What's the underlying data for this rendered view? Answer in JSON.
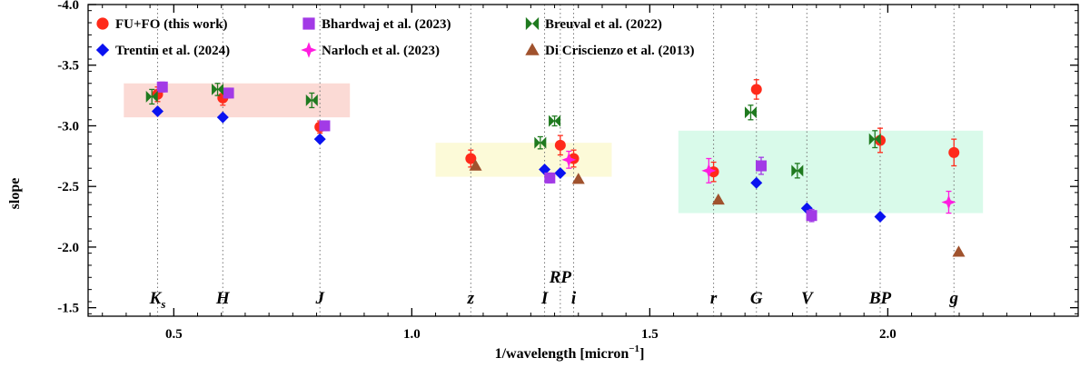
{
  "chart_data": {
    "type": "scatter",
    "xlabel": "1/wavelength [micron",
    "xlabel_sup": "−1",
    "xlabel_close": "]",
    "ylabel": "slope",
    "xlim": [
      0.32,
      2.4
    ],
    "ylim": [
      -1.43,
      -4.0
    ],
    "y_inverted": true,
    "xticks": [
      0.5,
      1.0,
      1.5,
      2.0
    ],
    "xtick_labels": [
      "0.5",
      "1.0",
      "1.5",
      "2.0"
    ],
    "yticks": [
      -1.5,
      -2.0,
      -2.5,
      -3.0,
      -3.5,
      -4.0
    ],
    "ytick_labels": [
      "-1.5",
      "-2.0",
      "-2.5",
      "-3.0",
      "-3.5",
      "-4.0"
    ],
    "grid": false,
    "legend_position": "top",
    "bands": [
      {
        "label": "K",
        "sub": "s",
        "x": 0.466
      },
      {
        "label": "H",
        "sub": "",
        "x": 0.603
      },
      {
        "label": "J",
        "sub": "",
        "x": 0.807
      },
      {
        "label": "z",
        "sub": "",
        "x": 1.124
      },
      {
        "label": "I",
        "sub": "",
        "x": 1.279
      },
      {
        "label": "RP",
        "sub": "",
        "x": 1.312,
        "raised": true
      },
      {
        "label": "i",
        "sub": "",
        "x": 1.34
      },
      {
        "label": "r",
        "sub": "",
        "x": 1.634
      },
      {
        "label": "G",
        "sub": "",
        "x": 1.724
      },
      {
        "label": "V",
        "sub": "",
        "x": 1.83
      },
      {
        "label": "BP",
        "sub": "",
        "x": 1.984
      },
      {
        "label": "g",
        "sub": "",
        "x": 2.139
      }
    ],
    "regions": [
      {
        "x": [
          0.395,
          0.87
        ],
        "y": [
          -3.07,
          -3.35
        ],
        "color": "#fbdad5"
      },
      {
        "x": [
          1.05,
          1.42
        ],
        "y": [
          -2.58,
          -2.86
        ],
        "color": "#fcfad8"
      },
      {
        "x": [
          1.56,
          2.2
        ],
        "y": [
          -2.28,
          -2.96
        ],
        "color": "#d9faea"
      }
    ],
    "series": [
      {
        "name": "FU+FO (this work)",
        "marker": "circle",
        "color": "#ff2a1a",
        "errcolor": "#ff2a1a",
        "points": [
          {
            "x": 0.466,
            "y": -3.26,
            "err": 0.06
          },
          {
            "x": 0.603,
            "y": -3.23,
            "err": 0.06
          },
          {
            "x": 0.807,
            "y": -2.99,
            "err": 0.05
          },
          {
            "x": 1.124,
            "y": -2.73,
            "err": 0.07
          },
          {
            "x": 1.312,
            "y": -2.84,
            "err": 0.08
          },
          {
            "x": 1.34,
            "y": -2.73,
            "err": 0.07
          },
          {
            "x": 1.634,
            "y": -2.62,
            "err": 0.08
          },
          {
            "x": 1.724,
            "y": -3.3,
            "err": 0.08
          },
          {
            "x": 1.984,
            "y": -2.88,
            "err": 0.1
          },
          {
            "x": 2.139,
            "y": -2.78,
            "err": 0.11
          }
        ]
      },
      {
        "name": "Trentin et al. (2024)",
        "marker": "diamond",
        "color": "#0a12f0",
        "errcolor": "#0a12f0",
        "points": [
          {
            "x": 0.466,
            "y": -3.12,
            "err": 0.02
          },
          {
            "x": 0.603,
            "y": -3.07,
            "err": 0.02
          },
          {
            "x": 0.807,
            "y": -2.89,
            "err": 0.02
          },
          {
            "x": 1.279,
            "y": -2.64,
            "err": 0.02
          },
          {
            "x": 1.312,
            "y": -2.61,
            "err": 0.02
          },
          {
            "x": 1.724,
            "y": -2.53,
            "err": 0.02
          },
          {
            "x": 1.83,
            "y": -2.32,
            "err": 0.02
          },
          {
            "x": 1.984,
            "y": -2.25,
            "err": 0.02
          }
        ]
      },
      {
        "name": "Bhardwaj et al. (2023)",
        "marker": "square",
        "color": "#a23ae6",
        "errcolor": "#a23ae6",
        "points": [
          {
            "x": 0.476,
            "y": -3.32,
            "err": 0.04
          },
          {
            "x": 0.615,
            "y": -3.27,
            "err": 0.04
          },
          {
            "x": 0.817,
            "y": -3.0,
            "err": 0.04
          },
          {
            "x": 1.29,
            "y": -2.57,
            "err": 0.04
          },
          {
            "x": 1.734,
            "y": -2.67,
            "err": 0.07
          },
          {
            "x": 1.84,
            "y": -2.26,
            "err": 0.05
          }
        ]
      },
      {
        "name": "Narloch et al. (2023)",
        "marker": "star",
        "color": "#ff1ce0",
        "errcolor": "#ff1ce0",
        "points": [
          {
            "x": 1.33,
            "y": -2.72,
            "err": 0.07
          },
          {
            "x": 1.624,
            "y": -2.63,
            "err": 0.1
          },
          {
            "x": 2.128,
            "y": -2.37,
            "err": 0.09
          }
        ]
      },
      {
        "name": "Breuval et al. (2022)",
        "marker": "bowtie",
        "color": "#1f7a1f",
        "errcolor": "#1f7a1f",
        "points": [
          {
            "x": 0.454,
            "y": -3.24,
            "err": 0.06
          },
          {
            "x": 0.592,
            "y": -3.3,
            "err": 0.05
          },
          {
            "x": 0.79,
            "y": -3.21,
            "err": 0.06
          },
          {
            "x": 1.27,
            "y": -2.86,
            "err": 0.05
          },
          {
            "x": 1.3,
            "y": -3.04,
            "err": 0.04
          },
          {
            "x": 1.81,
            "y": -2.63,
            "err": 0.06
          },
          {
            "x": 1.973,
            "y": -2.89,
            "err": 0.07
          },
          {
            "x": 1.712,
            "y": -3.11,
            "err": 0.06
          }
        ]
      },
      {
        "name": "Di Criscienzo et al. (2013)",
        "marker": "triangle",
        "color": "#a0522d",
        "errcolor": "#a0522d",
        "points": [
          {
            "x": 1.134,
            "y": -2.67,
            "err": 0.0
          },
          {
            "x": 1.35,
            "y": -2.56,
            "err": 0.0
          },
          {
            "x": 1.644,
            "y": -2.39,
            "err": 0.0
          },
          {
            "x": 2.149,
            "y": -1.96,
            "err": 0.0
          }
        ]
      }
    ]
  }
}
